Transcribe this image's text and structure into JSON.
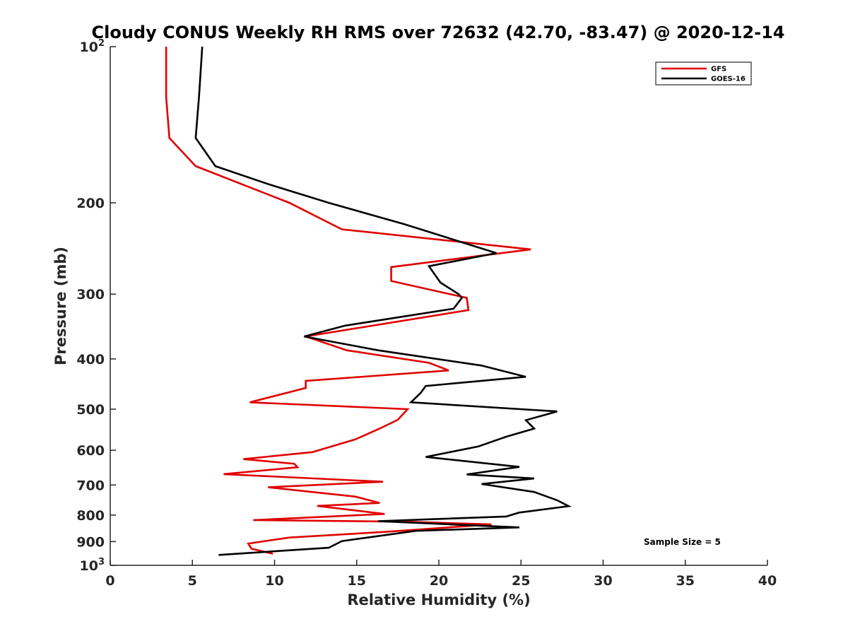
{
  "chart_data": {
    "type": "line",
    "title": "Cloudy CONUS Weekly RH RMS over 72632 (42.70, -83.47) @ 2020-12-14",
    "xlabel": "Relative Humidity (%)",
    "ylabel": "Pressure (mb)",
    "xlim": [
      0,
      40
    ],
    "ylim": [
      100,
      1000
    ],
    "y_scale": "log",
    "y_reversed": true,
    "x_ticks": [
      "0",
      "5",
      "10",
      "15",
      "20",
      "25",
      "30",
      "35",
      "40"
    ],
    "y_ticks": [
      {
        "value": 100,
        "label": "10",
        "exp": "2"
      },
      {
        "value": 200,
        "label": "200"
      },
      {
        "value": 300,
        "label": "300"
      },
      {
        "value": 400,
        "label": "400"
      },
      {
        "value": 500,
        "label": "500"
      },
      {
        "value": 600,
        "label": "600"
      },
      {
        "value": 700,
        "label": "700"
      },
      {
        "value": 800,
        "label": "800"
      },
      {
        "value": 900,
        "label": "900"
      },
      {
        "value": 1000,
        "label": "10",
        "exp": "3"
      }
    ],
    "grid": false,
    "legend_position": "top-right",
    "annotation": "Sample Size = 5",
    "series": [
      {
        "name": "GFS",
        "color": "#e00000",
        "points": [
          [
            3.4,
            100
          ],
          [
            3.4,
            125
          ],
          [
            3.6,
            150
          ],
          [
            5.2,
            170
          ],
          [
            10.9,
            200
          ],
          [
            14.1,
            225
          ],
          [
            25.6,
            246
          ],
          [
            17.1,
            266
          ],
          [
            17.1,
            283
          ],
          [
            21.7,
            305
          ],
          [
            21.8,
            322
          ],
          [
            11.9,
            362
          ],
          [
            14.4,
            385
          ],
          [
            19.4,
            407
          ],
          [
            20.6,
            421
          ],
          [
            11.9,
            441
          ],
          [
            11.9,
            455
          ],
          [
            8.5,
            485
          ],
          [
            18.1,
            500
          ],
          [
            17.5,
            524
          ],
          [
            16.4,
            545
          ],
          [
            14.9,
            572
          ],
          [
            12.3,
            605
          ],
          [
            8.1,
            624
          ],
          [
            11.2,
            637
          ],
          [
            11.4,
            647
          ],
          [
            6.9,
            667
          ],
          [
            16.6,
            690
          ],
          [
            9.6,
            707
          ],
          [
            14.9,
            737
          ],
          [
            16.4,
            758
          ],
          [
            12.6,
            768
          ],
          [
            16.7,
            796
          ],
          [
            8.7,
            818
          ],
          [
            18.1,
            824
          ],
          [
            23.2,
            834
          ],
          [
            16.7,
            862
          ],
          [
            10.9,
            884
          ],
          [
            8.4,
            908
          ],
          [
            8.6,
            929
          ],
          [
            9.9,
            950
          ]
        ]
      },
      {
        "name": "GOES-16",
        "color": "#000000",
        "points": [
          [
            5.6,
            100
          ],
          [
            5.4,
            125
          ],
          [
            5.2,
            150
          ],
          [
            6.4,
            170
          ],
          [
            9.6,
            184
          ],
          [
            13.3,
            200
          ],
          [
            17.9,
            220
          ],
          [
            23.5,
            250
          ],
          [
            19.4,
            265
          ],
          [
            20.1,
            285
          ],
          [
            21.2,
            300
          ],
          [
            21.4,
            305
          ],
          [
            20.9,
            320
          ],
          [
            14.3,
            345
          ],
          [
            11.8,
            362
          ],
          [
            16.3,
            385
          ],
          [
            22.6,
            412
          ],
          [
            25.3,
            433
          ],
          [
            19.2,
            451
          ],
          [
            18.9,
            465
          ],
          [
            18.3,
            485
          ],
          [
            27.2,
            505
          ],
          [
            25.3,
            525
          ],
          [
            25.8,
            545
          ],
          [
            24.1,
            565
          ],
          [
            22.4,
            590
          ],
          [
            19.2,
            618
          ],
          [
            24.9,
            646
          ],
          [
            21.7,
            668
          ],
          [
            25.8,
            680
          ],
          [
            22.6,
            697
          ],
          [
            25.8,
            722
          ],
          [
            27.2,
            749
          ],
          [
            27.9,
            769
          ],
          [
            24.9,
            791
          ],
          [
            24.1,
            805
          ],
          [
            16.3,
            822
          ],
          [
            24.9,
            845
          ],
          [
            18.6,
            858
          ],
          [
            14.1,
            898
          ],
          [
            13.3,
            925
          ],
          [
            6.6,
            955
          ]
        ]
      }
    ]
  }
}
